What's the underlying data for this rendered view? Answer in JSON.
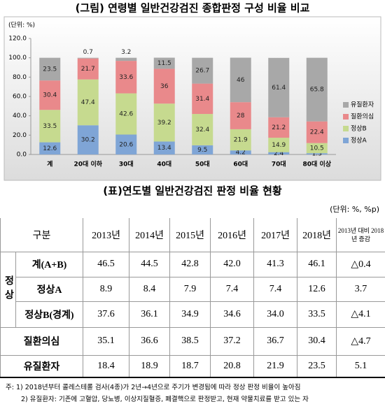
{
  "chart_data": {
    "type": "bar",
    "stacked": true,
    "title": "(그림) 연령별 일반건강검진 종합판정 구성 비율 비교",
    "unit_label": "(단위: %)",
    "categories": [
      "계",
      "20대 이하",
      "30대",
      "40대",
      "50대",
      "60대",
      "70대",
      "80대 이상"
    ],
    "series": [
      {
        "name": "정상A",
        "color": "#7fa5d6",
        "values": [
          12.6,
          30.2,
          20.6,
          13.4,
          9.5,
          4.2,
          2.4,
          1.3
        ]
      },
      {
        "name": "정상B",
        "color": "#c6da8f",
        "values": [
          33.5,
          47.4,
          42.6,
          39.2,
          32.4,
          21.9,
          14.9,
          10.5
        ]
      },
      {
        "name": "질환의심",
        "color": "#e9898b",
        "values": [
          30.4,
          21.7,
          33.6,
          36,
          31.4,
          28,
          21.2,
          22.4
        ]
      },
      {
        "name": "유질환자",
        "color": "#a8a8a8",
        "values": [
          23.5,
          0.7,
          3.2,
          11.5,
          26.7,
          46,
          61.4,
          65.8
        ]
      }
    ],
    "ylim": [
      0,
      120
    ],
    "yticks": [
      {
        "value": 0,
        "label": "0.0"
      },
      {
        "value": 20,
        "label": "20.0"
      },
      {
        "value": 40,
        "label": "40.0"
      },
      {
        "value": 60,
        "label": "60.0"
      },
      {
        "value": 80,
        "label": "80.0"
      },
      {
        "value": 100,
        "label": "100.0"
      },
      {
        "value": 120,
        "label": "120.0"
      }
    ],
    "legend": "right",
    "grid": false
  },
  "table": {
    "title": "(표)연도별 일반건강검진 판정 비율 현황",
    "unit": "(단위: %, %p)",
    "header": [
      "구분",
      "2013년",
      "2014년",
      "2015년",
      "2016년",
      "2017년",
      "2018년",
      "2013년 대비 2018년 증감"
    ],
    "grouped": {
      "label": "정상",
      "rows": [
        [
          "계(A+B)",
          "46.5",
          "44.5",
          "42.8",
          "42.0",
          "41.3",
          "46.1",
          "△0.4"
        ],
        [
          "정상A",
          "8.9",
          "8.4",
          "7.9",
          "7.4",
          "7.4",
          "12.6",
          "3.7"
        ],
        [
          "정상B(경계)",
          "37.6",
          "36.1",
          "34.9",
          "34.6",
          "34.0",
          "33.5",
          "△4.1"
        ]
      ]
    },
    "rows": [
      [
        "질환의심",
        "35.1",
        "36.6",
        "38.5",
        "37.2",
        "36.7",
        "30.4",
        "△4.7"
      ],
      [
        "유질환자",
        "18.4",
        "18.9",
        "18.7",
        "20.8",
        "21.9",
        "23.5",
        "5.1"
      ]
    ]
  },
  "notes": [
    "주: 1) 2018년부터 콜레스테롤 검사(4종)가 2년→4년으로 주기가 변경됨에 따라 정상 판정 비율이 높아짐",
    "2) 유질환자: 기존에 고혈압, 당뇨병, 이상지질혈증, 폐결핵으로 판정받고, 현재 약물치료를 받고 있는 자"
  ]
}
